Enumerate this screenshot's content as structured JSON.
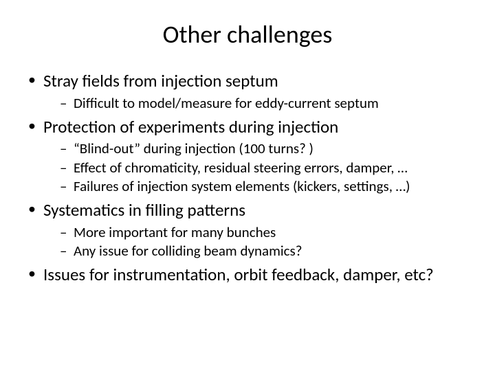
{
  "slide": {
    "title": "Other challenges",
    "title_fontsize": 36,
    "body_fontsize_level1": 25,
    "body_fontsize_level2": 21,
    "background_color": "#ffffff",
    "text_color": "#000000",
    "font_family": "Calibri",
    "bullets": [
      {
        "text": "Stray fields from injection septum",
        "sub": [
          "Difficult to model/measure for eddy-current septum"
        ]
      },
      {
        "text": "Protection of experiments during injection",
        "sub": [
          "“Blind-out” during injection (100 turns? )",
          "Effect of chromaticity, residual steering errors, damper, …",
          "Failures of injection system elements (kickers, settings, …)"
        ]
      },
      {
        "text": "Systematics in filling patterns",
        "sub": [
          "More important for many bunches",
          "Any issue for colliding beam dynamics?"
        ]
      },
      {
        "text": "Issues for instrumentation, orbit feedback, damper, etc?",
        "sub": []
      }
    ]
  }
}
